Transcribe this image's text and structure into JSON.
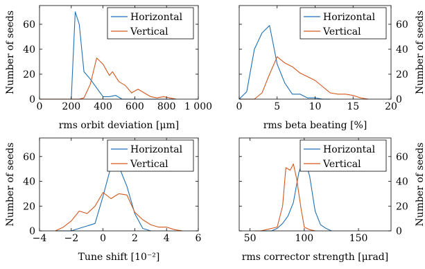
{
  "colors": {
    "horizontal": "#1f6fb4",
    "vertical": "#d4571c",
    "axis": "#000000"
  },
  "chart_data": [
    {
      "type": "line",
      "xlabel": "rms orbit deviation [μm]",
      "ylabel": "Number of seeds",
      "xlim": [
        0,
        1000
      ],
      "ylim": [
        0,
        75
      ],
      "xticks": [
        0,
        200,
        400,
        600,
        800,
        1000
      ],
      "xtick_labels": [
        "0",
        "200",
        "400",
        "600",
        "800",
        "1 000"
      ],
      "yticks": [
        0,
        20,
        40,
        60
      ],
      "ytick_labels": [
        "0",
        "20",
        "40",
        "60"
      ],
      "y_axis_side": "left",
      "legend": "top-right",
      "series": [
        {
          "name": "Horizontal",
          "x": [
            0,
            50,
            100,
            150,
            200,
            225,
            250,
            280,
            320,
            360,
            400,
            440,
            480,
            520,
            560,
            600,
            640,
            700,
            800,
            850
          ],
          "y": [
            0,
            0,
            0,
            0,
            0,
            70,
            60,
            22,
            16,
            9,
            2,
            2,
            3,
            0,
            0,
            0,
            0,
            0,
            0,
            0
          ]
        },
        {
          "name": "Vertical",
          "x": [
            0,
            100,
            200,
            250,
            280,
            320,
            360,
            400,
            440,
            460,
            500,
            540,
            580,
            620,
            660,
            700,
            740,
            780,
            820,
            860
          ],
          "y": [
            0,
            0,
            0,
            0,
            1,
            12,
            33,
            28,
            19,
            22,
            14,
            11,
            5,
            8,
            5,
            2,
            1,
            2,
            1,
            0
          ]
        }
      ]
    },
    {
      "type": "line",
      "xlabel": "rms beta beating [%]",
      "ylabel": "Number of seeds",
      "xlim": [
        0,
        20
      ],
      "ylim": [
        0,
        75
      ],
      "xticks": [
        0,
        5,
        10,
        15,
        20
      ],
      "xtick_labels": [
        "0",
        "5",
        "10",
        "15",
        "20"
      ],
      "yticks": [
        0,
        20,
        40,
        60
      ],
      "ytick_labels": [
        "0",
        "20",
        "40",
        "60"
      ],
      "y_axis_side": "right",
      "legend": "top-right",
      "series": [
        {
          "name": "Horizontal",
          "x": [
            0,
            1,
            2,
            3,
            4,
            5,
            6,
            7,
            8,
            9,
            10,
            11,
            12
          ],
          "y": [
            0,
            6,
            40,
            53,
            59,
            28,
            13,
            4,
            4,
            1,
            1,
            0,
            0
          ]
        },
        {
          "name": "Vertical",
          "x": [
            0,
            1,
            2,
            3,
            4,
            5,
            6,
            7,
            8,
            9,
            10,
            11,
            12,
            13,
            14,
            15,
            16,
            17
          ],
          "y": [
            0,
            0,
            0,
            5,
            20,
            34,
            29,
            26,
            21,
            18,
            15,
            10,
            5,
            4,
            4,
            3,
            1,
            0
          ]
        }
      ]
    },
    {
      "type": "line",
      "xlabel": "Tune shift [10⁻²]",
      "ylabel": "Number of seeds",
      "xlim": [
        -4,
        6
      ],
      "ylim": [
        0,
        75
      ],
      "xticks": [
        -4,
        -2,
        0,
        2,
        4,
        6
      ],
      "xtick_labels": [
        "−4",
        "−2",
        "0",
        "2",
        "4",
        "6"
      ],
      "yticks": [
        0,
        20,
        40,
        60
      ],
      "ytick_labels": [
        "0",
        "20",
        "40",
        "60"
      ],
      "y_axis_side": "left",
      "legend": "top-right",
      "series": [
        {
          "name": "Horizontal",
          "x": [
            -3,
            -2,
            -1.5,
            -1,
            -0.5,
            0,
            0.5,
            1,
            1.5,
            2,
            2.5,
            3
          ],
          "y": [
            0,
            0,
            2,
            4,
            6,
            28,
            52,
            52,
            36,
            14,
            2,
            0
          ]
        },
        {
          "name": "Vertical",
          "x": [
            -3,
            -2.5,
            -2,
            -1.5,
            -1,
            -0.5,
            0,
            0.5,
            1,
            1.5,
            2,
            2.5,
            3,
            3.5,
            4,
            4.5,
            5
          ],
          "y": [
            0,
            3,
            8,
            16,
            14,
            20,
            31,
            26,
            30,
            29,
            15,
            9,
            5,
            3,
            3,
            1,
            0
          ]
        }
      ]
    },
    {
      "type": "line",
      "xlabel": "rms corrector strength [μrad]",
      "ylabel": "Number of seeds",
      "xlim": [
        40,
        180
      ],
      "ylim": [
        0,
        75
      ],
      "xticks": [
        50,
        100,
        150
      ],
      "xtick_labels": [
        "50",
        "100",
        "150"
      ],
      "yticks": [
        0,
        20,
        40,
        60
      ],
      "ytick_labels": [
        "0",
        "20",
        "40",
        "60"
      ],
      "y_axis_side": "right",
      "legend": "top-right",
      "series": [
        {
          "name": "Horizontal",
          "x": [
            60,
            70,
            75,
            80,
            85,
            90,
            95,
            100,
            105,
            110,
            115,
            120,
            125
          ],
          "y": [
            0,
            0,
            2,
            6,
            12,
            23,
            47,
            60,
            44,
            16,
            5,
            2,
            0
          ]
        },
        {
          "name": "Vertical",
          "x": [
            55,
            60,
            65,
            70,
            75,
            80,
            83,
            87,
            90,
            93,
            97,
            100,
            105,
            110
          ],
          "y": [
            0,
            0,
            1,
            2,
            3,
            20,
            51,
            49,
            54,
            42,
            18,
            3,
            1,
            0
          ]
        }
      ]
    }
  ]
}
